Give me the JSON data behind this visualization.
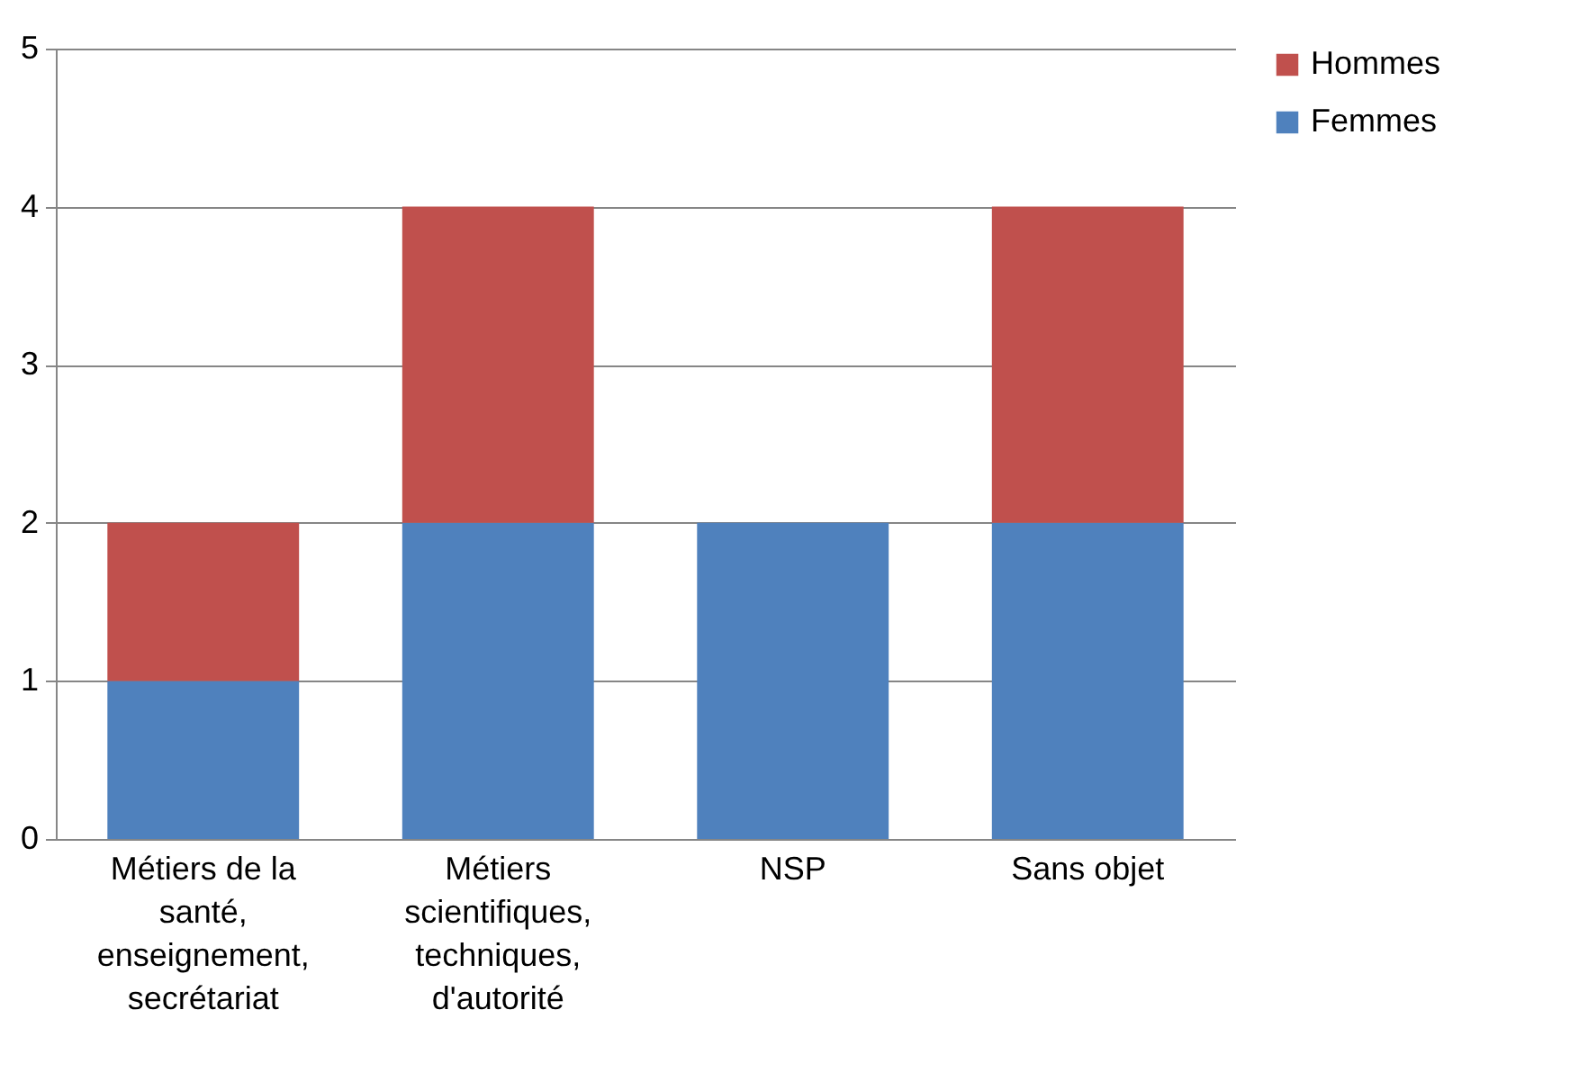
{
  "chart_data": {
    "type": "bar",
    "stacked": true,
    "categories": [
      "Métiers de la santé, enseignement, secrétariat",
      "Métiers scientifiques, techniques, d'autorité",
      "NSP",
      "Sans objet"
    ],
    "series": [
      {
        "name": "Femmes",
        "color": "#4f81bd",
        "values": [
          1,
          2,
          2,
          2
        ]
      },
      {
        "name": "Hommes",
        "color": "#c0504d",
        "values": [
          1,
          2,
          0,
          2
        ]
      }
    ],
    "ylim": [
      0,
      5
    ],
    "yticks": [
      0,
      1,
      2,
      3,
      4,
      5
    ],
    "grid": "y",
    "legend": "right"
  }
}
